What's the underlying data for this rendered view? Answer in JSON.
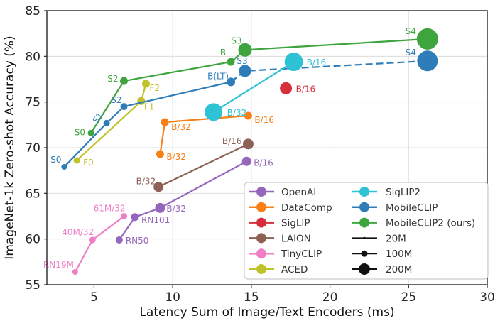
{
  "chart_data": {
    "type": "scatter",
    "title": "",
    "xlabel": "Latency Sum of Image/Text Encoders (ms)",
    "ylabel": "ImageNet-1k Zero-shot Accuracy (%)",
    "xlim": [
      2,
      30
    ],
    "ylim": [
      55,
      85
    ],
    "xticks": [
      5,
      10,
      15,
      20,
      25,
      30
    ],
    "yticks": [
      55,
      60,
      65,
      70,
      75,
      80,
      85
    ],
    "grid": true,
    "grid_color": "#dcdcdc",
    "spine_color": "#262626",
    "tick_label_color": "#262626",
    "legend_position": "lower right",
    "series": [
      {
        "name": "OpenAI",
        "color": "#9467bd",
        "line_style": "solid",
        "points": [
          {
            "label": "RN50",
            "x": 6.6,
            "y": 59.9,
            "r": 5,
            "dx": 9,
            "dy": 5,
            "anchor": "start"
          },
          {
            "label": "RN101",
            "x": 7.6,
            "y": 62.4,
            "r": 5.5,
            "dx": 9,
            "dy": 8,
            "anchor": "start"
          },
          {
            "label": "B/32",
            "x": 9.2,
            "y": 63.4,
            "r": 7,
            "dx": 9,
            "dy": 5,
            "anchor": "start"
          },
          {
            "label": "B/16",
            "x": 14.7,
            "y": 68.5,
            "r": 6.5,
            "dx": 10,
            "dy": 6,
            "anchor": "start"
          }
        ]
      },
      {
        "name": "DataComp",
        "color": "#f87e16",
        "line_style": "solid",
        "points": [
          {
            "label": "B/32",
            "x": 9.2,
            "y": 69.3,
            "r": 5.5,
            "dx": 9,
            "dy": 8,
            "anchor": "start"
          },
          {
            "label": "B/32",
            "x": 9.5,
            "y": 72.8,
            "r": 5.5,
            "dx": 9,
            "dy": 11,
            "anchor": "start"
          },
          {
            "label": "B/16",
            "x": 14.8,
            "y": 73.5,
            "r": 5.5,
            "dx": 9,
            "dy": 10,
            "anchor": "start"
          }
        ]
      },
      {
        "name": "SigLIP",
        "color": "#d62f3b",
        "line_style": "solid",
        "points": [
          {
            "label": "B/16",
            "x": 17.2,
            "y": 76.5,
            "r": 8.5,
            "dx": 14,
            "dy": 5,
            "anchor": "start"
          }
        ]
      },
      {
        "name": "LAION",
        "color": "#8d6156",
        "line_style": "solid",
        "points": [
          {
            "label": "B/32",
            "x": 9.1,
            "y": 65.7,
            "r": 7,
            "dx": -4,
            "dy": -4,
            "anchor": "end"
          },
          {
            "label": "B/16",
            "x": 14.8,
            "y": 70.4,
            "r": 7.5,
            "dx": -9,
            "dy": 0,
            "anchor": "end"
          }
        ]
      },
      {
        "name": "TinyCLIP",
        "color": "#ef7ec6",
        "line_style": "solid",
        "points": [
          {
            "label": "RN19M",
            "x": 3.8,
            "y": 56.4,
            "r": 4,
            "dx": -2,
            "dy": -6,
            "anchor": "end"
          },
          {
            "label": "40M/32",
            "x": 4.9,
            "y": 59.9,
            "r": 4.5,
            "dx": 2,
            "dy": -7,
            "anchor": "end"
          },
          {
            "label": "61M/32",
            "x": 6.9,
            "y": 62.5,
            "r": 4.5,
            "dx": 2,
            "dy": -7,
            "anchor": "end"
          }
        ]
      },
      {
        "name": "ACED",
        "color": "#bfc22a",
        "line_style": "solid",
        "points": [
          {
            "label": "F0",
            "x": 3.9,
            "y": 68.6,
            "r": 4.5,
            "dx": 9,
            "dy": 7,
            "anchor": "start"
          },
          {
            "label": "F1",
            "x": 8.0,
            "y": 75.1,
            "r": 5.5,
            "dx": 4,
            "dy": 12,
            "anchor": "start"
          },
          {
            "label": "F2",
            "x": 8.3,
            "y": 77.0,
            "r": 5.5,
            "dx": 5,
            "dy": 10,
            "anchor": "start"
          }
        ]
      },
      {
        "name": "MobileCLIP",
        "color": "#2e7cb8",
        "line_style": "solid",
        "dash_from": 3,
        "points": [
          {
            "label": "S0",
            "x": 3.1,
            "y": 67.9,
            "r": 4,
            "dx": -4,
            "dy": -6,
            "anchor": "end"
          },
          {
            "label": "S1",
            "x": 5.8,
            "y": 72.7,
            "r": 4.5,
            "dx": -9,
            "dy": -5,
            "anchor": "middle",
            "rot": -55
          },
          {
            "label": "S2",
            "x": 6.9,
            "y": 74.5,
            "r": 5,
            "dx": -3,
            "dy": -5,
            "anchor": "end"
          },
          {
            "label": "B(LT)",
            "x": 13.7,
            "y": 77.2,
            "r": 6,
            "dx": -3,
            "dy": -4,
            "anchor": "end"
          },
          {
            "label": "S3",
            "x": 14.6,
            "y": 78.4,
            "r": 8.5,
            "dx": -4,
            "dy": -10,
            "anchor": "middle"
          },
          {
            "label": "S4",
            "x": 26.2,
            "y": 79.5,
            "r": 14.5,
            "dx": -16,
            "dy": -8,
            "anchor": "end"
          }
        ]
      },
      {
        "name": "SigLIP2",
        "color": "#2dc3d5",
        "line_style": "solid",
        "points": [
          {
            "label": "B/32",
            "x": 12.6,
            "y": 73.9,
            "r": 12.5,
            "dx": 19,
            "dy": 5,
            "anchor": "start"
          },
          {
            "label": "B/16",
            "x": 17.7,
            "y": 79.4,
            "r": 13,
            "dx": 18,
            "dy": 5,
            "anchor": "start"
          }
        ]
      },
      {
        "name": "MobileCLIP2 (ours)",
        "color": "#3ea43d",
        "line_style": "solid",
        "points": [
          {
            "label": "S0",
            "x": 4.8,
            "y": 71.6,
            "r": 4.5,
            "dx": -8,
            "dy": 3,
            "anchor": "end"
          },
          {
            "label": "S2",
            "x": 6.9,
            "y": 77.3,
            "r": 5.5,
            "dx": -8,
            "dy": 1,
            "anchor": "end"
          },
          {
            "label": "B",
            "x": 13.7,
            "y": 79.4,
            "r": 5.5,
            "dx": -7,
            "dy": -9,
            "anchor": "end"
          },
          {
            "label": "S3",
            "x": 14.6,
            "y": 80.7,
            "r": 9.5,
            "dx": -12,
            "dy": -9,
            "anchor": "middle"
          },
          {
            "label": "S4",
            "x": 26.2,
            "y": 81.9,
            "r": 15,
            "dx": -16,
            "dy": -7,
            "anchor": "end"
          }
        ]
      }
    ],
    "draw_order": [
      0,
      1,
      2,
      3,
      4,
      5,
      6,
      7,
      8
    ],
    "legend_entries": [
      {
        "label": "OpenAI",
        "color": "#9467bd",
        "kind": "series"
      },
      {
        "label": "DataComp",
        "color": "#f87e16",
        "kind": "series"
      },
      {
        "label": "SigLIP",
        "color": "#d62f3b",
        "kind": "series"
      },
      {
        "label": "LAION",
        "color": "#8d6156",
        "kind": "series"
      },
      {
        "label": "TinyCLIP",
        "color": "#ef7ec6",
        "kind": "series"
      },
      {
        "label": "ACED",
        "color": "#bfc22a",
        "kind": "series"
      },
      {
        "label": "SigLIP2",
        "color": "#2dc3d5",
        "kind": "series"
      },
      {
        "label": "MobileCLIP",
        "color": "#2e7cb8",
        "kind": "series"
      },
      {
        "label": "MobileCLIP2 (ours)",
        "color": "#3ea43d",
        "kind": "series"
      },
      {
        "label": "20M",
        "color": "#111111",
        "kind": "size",
        "r": 1.6
      },
      {
        "label": "100M",
        "color": "#111111",
        "kind": "size",
        "r": 4.5
      },
      {
        "label": "200M",
        "color": "#111111",
        "kind": "size",
        "r": 8
      }
    ]
  }
}
